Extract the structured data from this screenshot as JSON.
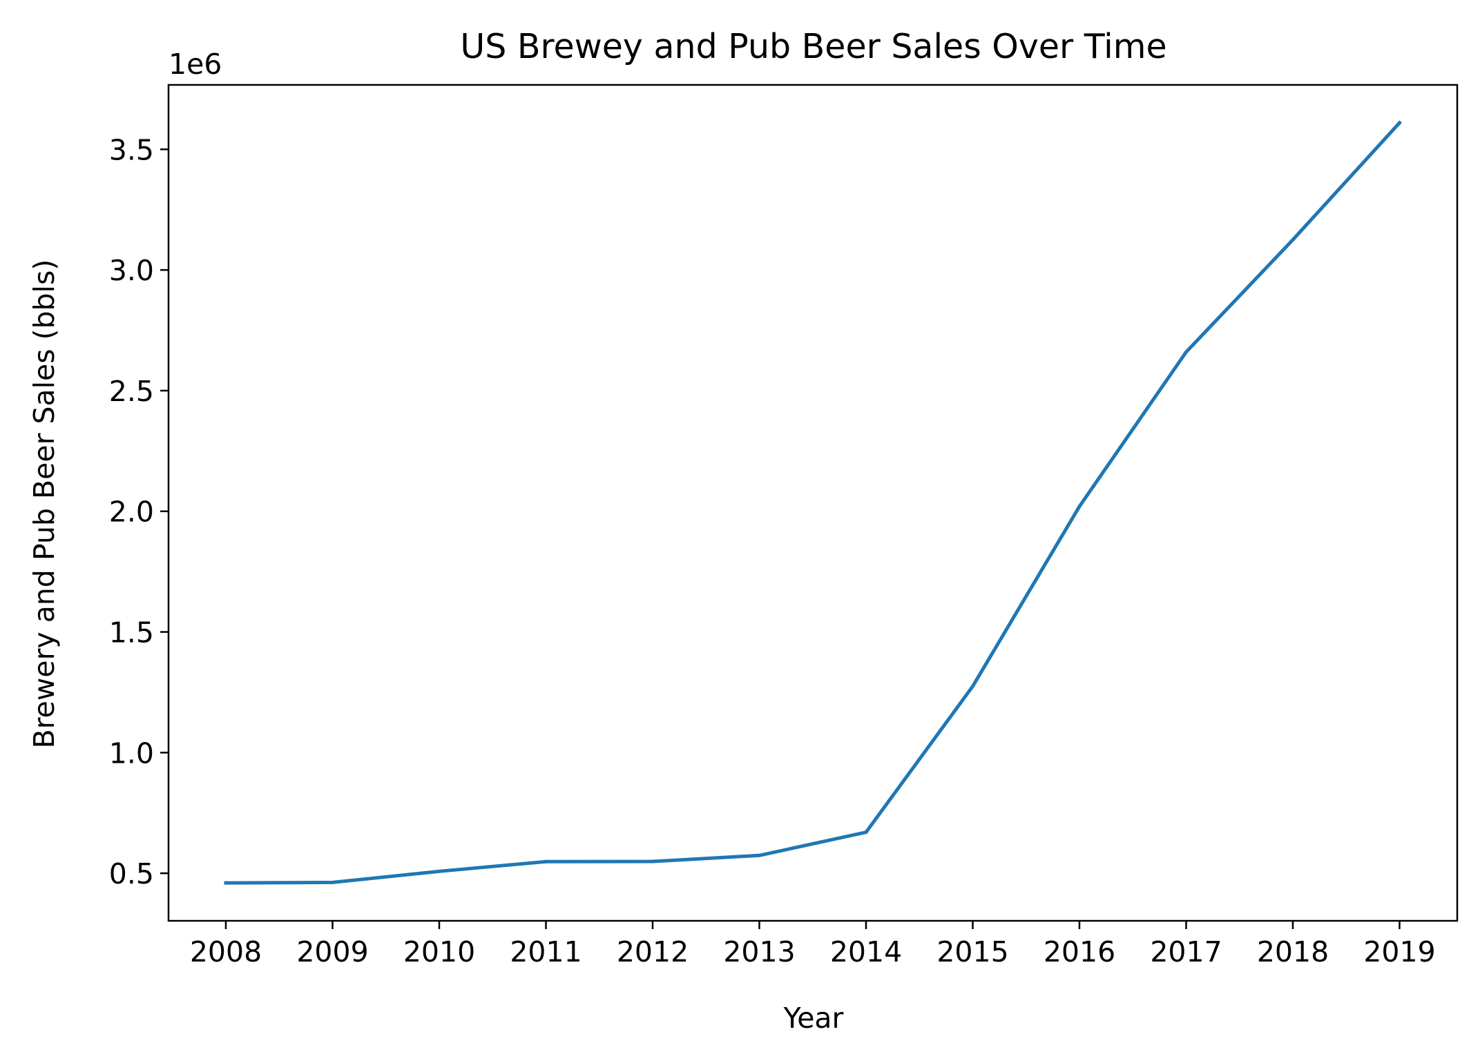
{
  "chart_data": {
    "type": "line",
    "title": "US Brewey and Pub Beer Sales Over Time",
    "xlabel": "Year",
    "ylabel": "Brewery and Pub Beer Sales (bbls)",
    "y_offset_text": "1e6",
    "categories": [
      "2008",
      "2009",
      "2010",
      "2011",
      "2012",
      "2013",
      "2014",
      "2015",
      "2016",
      "2017",
      "2018",
      "2019"
    ],
    "series": [
      {
        "values": [
          460000,
          462000,
          508000,
          548000,
          549000,
          574000,
          670000,
          1275000,
          2020000,
          2660000,
          3125000,
          3610000
        ],
        "color": "#1f77b4"
      }
    ],
    "y_ticks": [
      500000,
      1000000,
      1500000,
      2000000,
      2500000,
      3000000,
      3500000
    ],
    "y_tick_labels": [
      "0.5",
      "1.0",
      "1.5",
      "2.0",
      "2.5",
      "3.0",
      "3.5"
    ],
    "ylim": [
      303000,
      3767000
    ],
    "grid": false,
    "legend": "none"
  }
}
